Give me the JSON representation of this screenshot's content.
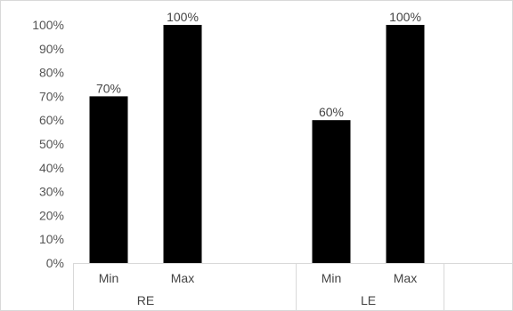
{
  "chart_data": {
    "type": "bar",
    "groups": [
      {
        "name": "RE",
        "categories": [
          "Min",
          "Max"
        ],
        "values": [
          70,
          100
        ],
        "labels": [
          "70%",
          "100%"
        ]
      },
      {
        "name": "LE",
        "categories": [
          "Min",
          "Max"
        ],
        "values": [
          60,
          100
        ],
        "labels": [
          "60%",
          "100%"
        ]
      }
    ],
    "ylim": [
      0,
      100
    ],
    "y_ticks": [
      0,
      10,
      20,
      30,
      40,
      50,
      60,
      70,
      80,
      90,
      100
    ],
    "y_tick_labels": [
      "0%",
      "10%",
      "20%",
      "30%",
      "40%",
      "50%",
      "60%",
      "70%",
      "80%",
      "90%",
      "100%"
    ],
    "grid": false,
    "legend": "none",
    "bar_color": "#000000",
    "title": "",
    "xlabel": "",
    "ylabel": ""
  }
}
